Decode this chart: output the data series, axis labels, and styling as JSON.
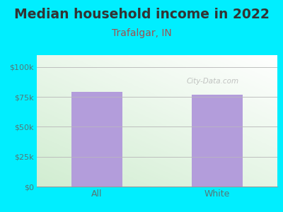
{
  "title": "Median household income in 2022",
  "subtitle": "Trafalgar, IN",
  "categories": [
    "All",
    "White"
  ],
  "values": [
    79000,
    77000
  ],
  "bar_color": "#b39ddb",
  "yticks": [
    0,
    25000,
    50000,
    75000,
    100000
  ],
  "ytick_labels": [
    "$0",
    "$25k",
    "$50k",
    "$75k",
    "$100k"
  ],
  "ylim": [
    0,
    110000
  ],
  "title_fontsize": 13.5,
  "subtitle_fontsize": 10,
  "title_color": "#333333",
  "subtitle_color": "#a05050",
  "tick_color": "#557777",
  "bg_outer": "#00eeff",
  "watermark": "City-Data.com",
  "bar_width": 0.42
}
